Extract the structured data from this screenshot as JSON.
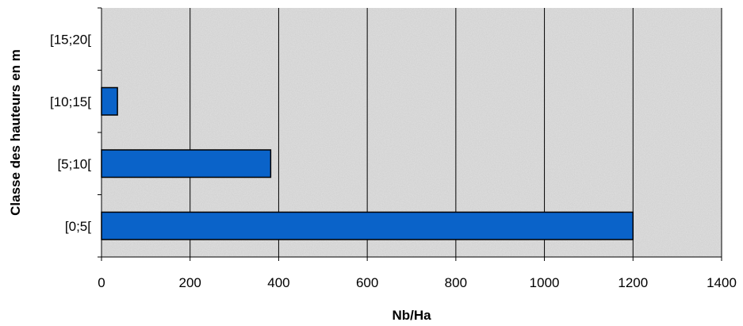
{
  "chart_data": {
    "type": "bar",
    "orientation": "horizontal",
    "categories": [
      "[0;5[",
      "[5;10[",
      "[10;15[",
      "[15;20["
    ],
    "values": [
      1200,
      382,
      36,
      0
    ],
    "xlabel": "Nb/Ha",
    "ylabel": "Classe des hauteurs en m",
    "xlim": [
      0,
      1400
    ],
    "xticks": [
      0,
      200,
      400,
      600,
      800,
      1000,
      1200,
      1400
    ],
    "grid": "vertical",
    "legend": "none"
  },
  "colors": {
    "bar_fill": "#0a63c9",
    "bar_stroke": "#000000",
    "plot_background": "#dcdcdc",
    "grid": "#000000"
  }
}
